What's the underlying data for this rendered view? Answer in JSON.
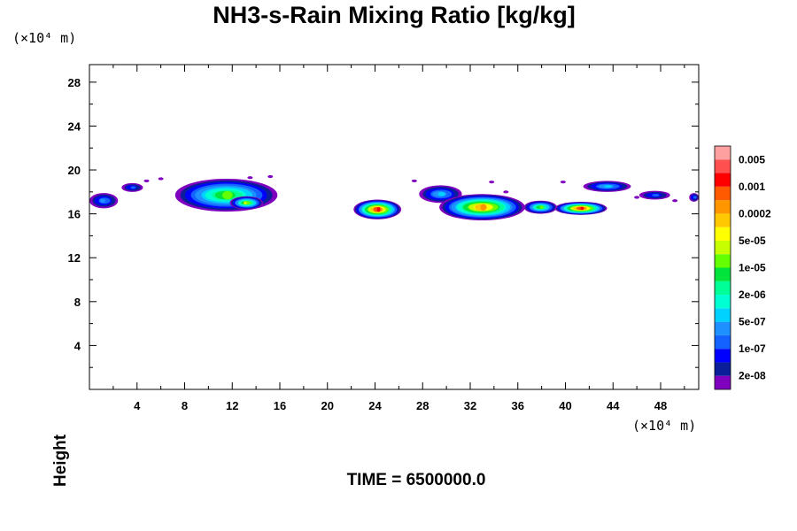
{
  "chart_data": {
    "type": "heatmap",
    "title": "NH3-s-Rain Mixing Ratio [kg/kg]",
    "ylabel": "Height",
    "x_unit": "(×10⁴ m)",
    "y_unit": "(×10⁴ m)",
    "footer": "TIME = 6500000.0",
    "xlim": [
      0,
      51.2
    ],
    "ylim": [
      0,
      29.6
    ],
    "x_ticks": [
      4,
      8,
      12,
      16,
      20,
      24,
      28,
      32,
      36,
      40,
      44,
      48
    ],
    "y_ticks": [
      4,
      8,
      12,
      16,
      20,
      24,
      28
    ],
    "colorbar": {
      "colors": [
        "#8000c0",
        "#0b1e9a",
        "#0000ff",
        "#1462ff",
        "#1e90ff",
        "#00d2ff",
        "#00ffd2",
        "#00ff96",
        "#00e43c",
        "#64ff00",
        "#c8ff00",
        "#ffff00",
        "#ffc800",
        "#ff9600",
        "#ff5a00",
        "#ff0000",
        "#ff5050",
        "#ffa0a0"
      ],
      "labels": [
        "2e-08",
        "1e-07",
        "5e-07",
        "2e-06",
        "1e-05",
        "5e-05",
        "0.0002",
        "0.001",
        "0.005"
      ]
    },
    "clouds": [
      {
        "x": 1.2,
        "y": 17.2,
        "rx": 1.2,
        "ry": 0.7,
        "max": 4
      },
      {
        "x": 3.6,
        "y": 18.4,
        "rx": 0.9,
        "ry": 0.4,
        "max": 3
      },
      {
        "x": 11.5,
        "y": 17.7,
        "rx": 4.3,
        "ry": 1.5,
        "max": 9
      },
      {
        "x": 13.2,
        "y": 17.0,
        "rx": 1.4,
        "ry": 0.6,
        "max": 10
      },
      {
        "x": 24.2,
        "y": 16.4,
        "rx": 2.0,
        "ry": 0.9,
        "max": 15
      },
      {
        "x": 29.5,
        "y": 17.8,
        "rx": 1.8,
        "ry": 0.8,
        "max": 5
      },
      {
        "x": 33.0,
        "y": 16.6,
        "rx": 3.6,
        "ry": 1.2,
        "max": 13
      },
      {
        "x": 37.9,
        "y": 16.6,
        "rx": 1.4,
        "ry": 0.6,
        "max": 9
      },
      {
        "x": 41.3,
        "y": 16.5,
        "rx": 2.2,
        "ry": 0.6,
        "max": 15
      },
      {
        "x": 43.5,
        "y": 18.5,
        "rx": 2.0,
        "ry": 0.5,
        "max": 5
      },
      {
        "x": 47.5,
        "y": 17.7,
        "rx": 1.3,
        "ry": 0.4,
        "max": 3
      },
      {
        "x": 50.8,
        "y": 17.5,
        "rx": 0.4,
        "ry": 0.4,
        "max": 3
      }
    ],
    "specks": [
      [
        4.8,
        19.0
      ],
      [
        6.0,
        19.2
      ],
      [
        13.5,
        19.3
      ],
      [
        15.2,
        19.4
      ],
      [
        27.3,
        19.0
      ],
      [
        33.8,
        18.9
      ],
      [
        35.0,
        18.0
      ],
      [
        39.8,
        18.9
      ],
      [
        46.0,
        17.5
      ],
      [
        49.2,
        17.2
      ]
    ]
  }
}
